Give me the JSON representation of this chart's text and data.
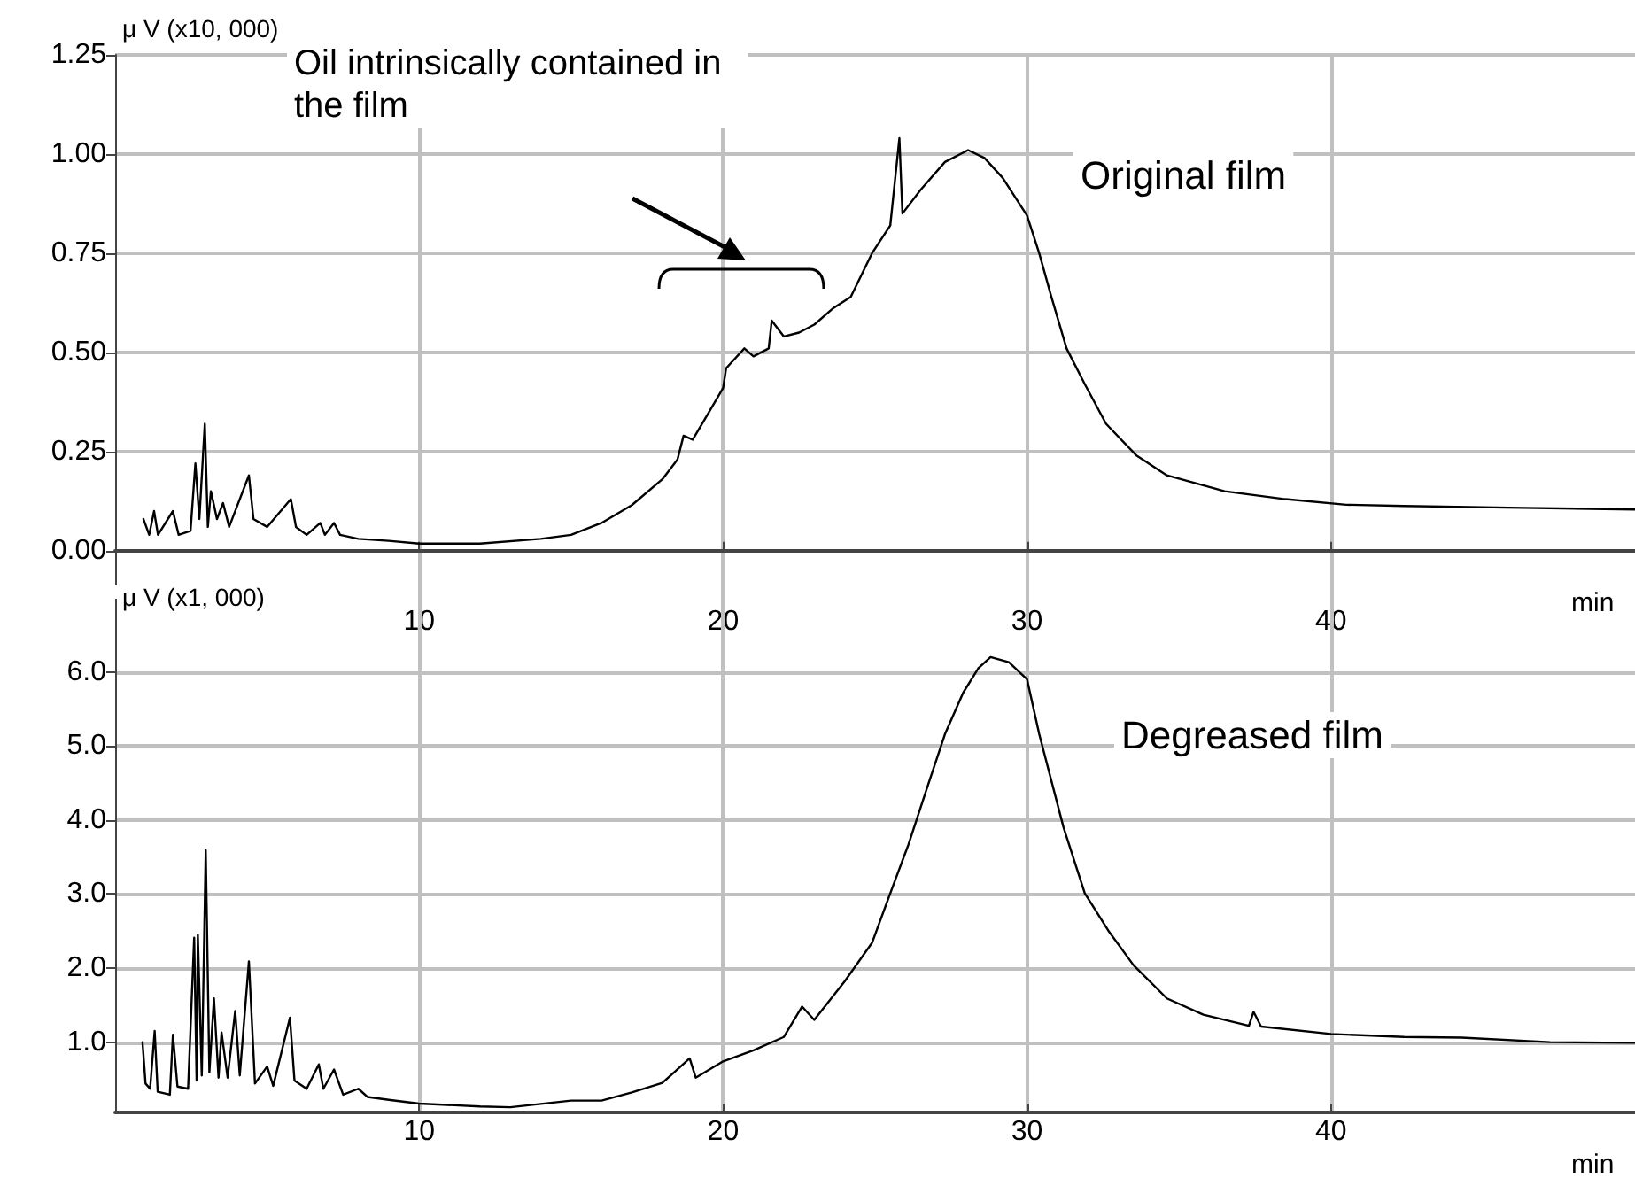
{
  "chart_data": [
    {
      "type": "line",
      "ylabel": "μ V (x10, 000)",
      "xlabel": "min",
      "xlim": [
        0,
        50
      ],
      "xticks": [
        10,
        20,
        30,
        40
      ],
      "ylim": [
        -0.13,
        1.25
      ],
      "yticks": [
        {
          "value": 0,
          "label": "0.00"
        },
        {
          "value": 0.25,
          "label": "0.25"
        },
        {
          "value": 0.5,
          "label": "0.50"
        },
        {
          "value": 0.75,
          "label": "0.75"
        },
        {
          "value": 1,
          "label": "1.00"
        },
        {
          "value": 1.25,
          "label": "1.25"
        }
      ],
      "grid": true,
      "marker": "none",
      "annotations": [
        "Oil intrinsically contained in the film"
      ],
      "x": [
        0.93,
        1.12,
        1.28,
        1.41,
        1.9,
        2.09,
        2.48,
        2.64,
        2.77,
        2.95,
        3.05,
        3.15,
        3.35,
        3.55,
        3.75,
        4.4,
        4.55,
        5.0,
        5.78,
        5.95,
        6.3,
        6.75,
        6.9,
        7.2,
        7.4,
        8,
        9,
        10,
        12,
        14,
        15,
        16,
        17,
        18,
        18.5,
        18.7,
        19,
        19.5,
        20,
        20.1,
        20.7,
        21,
        21.5,
        21.6,
        22,
        22.5,
        23,
        23.6,
        24.2,
        24.9,
        25.5,
        25.8,
        25.9,
        26.5,
        27.3,
        28.06,
        28.6,
        29.2,
        30.0,
        30.4,
        30.8,
        31.3,
        31.9,
        32.6,
        33.6,
        34.6,
        36.5,
        38.5,
        40.5,
        42.4,
        46.3,
        50
      ],
      "series": [
        {
          "name": "Original film",
          "color": "#000000",
          "values": [
            0.08,
            0.04,
            0.1,
            0.04,
            0.1,
            0.04,
            0.05,
            0.22,
            0.08,
            0.32,
            0.06,
            0.15,
            0.08,
            0.12,
            0.06,
            0.19,
            0.08,
            0.06,
            0.13,
            0.06,
            0.04,
            0.07,
            0.04,
            0.07,
            0.04,
            0.03,
            0.025,
            0.018,
            0.018,
            0.03,
            0.04,
            0.07,
            0.115,
            0.18,
            0.23,
            0.29,
            0.28,
            0.345,
            0.41,
            0.46,
            0.51,
            0.49,
            0.51,
            0.58,
            0.54,
            0.55,
            0.57,
            0.61,
            0.64,
            0.75,
            0.82,
            1.04,
            0.85,
            0.91,
            0.98,
            1.01,
            0.99,
            0.94,
            0.845,
            0.75,
            0.64,
            0.51,
            0.42,
            0.32,
            0.24,
            0.19,
            0.15,
            0.13,
            0.116,
            0.113,
            0.108,
            0.104
          ]
        }
      ]
    },
    {
      "type": "line",
      "ylabel": "μ V (x1, 000)",
      "xlabel": "min",
      "xlim": [
        0,
        50
      ],
      "xticks": [
        10,
        20,
        30,
        40
      ],
      "ylim": [
        0.05,
        6.94
      ],
      "yticks": [
        {
          "value": 1,
          "label": "1.0"
        },
        {
          "value": 2,
          "label": "2.0"
        },
        {
          "value": 3,
          "label": "3.0"
        },
        {
          "value": 4,
          "label": "4.0"
        },
        {
          "value": 5,
          "label": "5.0"
        },
        {
          "value": 6,
          "label": "6.0"
        }
      ],
      "grid": true,
      "marker": "none",
      "x": [
        0.9,
        1.0,
        1.15,
        1.3,
        1.4,
        1.8,
        1.9,
        2.05,
        2.4,
        2.6,
        2.68,
        2.72,
        2.85,
        2.98,
        3.1,
        3.25,
        3.4,
        3.5,
        3.7,
        3.95,
        4.1,
        4.4,
        4.6,
        5.0,
        5.2,
        5.75,
        5.9,
        6.3,
        6.7,
        6.85,
        7.2,
        7.5,
        8.0,
        8.3,
        9,
        10,
        12,
        13,
        15,
        16,
        17,
        18,
        18.9,
        19.1,
        20,
        21,
        22,
        22.6,
        23.0,
        24.0,
        24.9,
        25.5,
        26.1,
        26.7,
        27.3,
        27.9,
        28.4,
        28.8,
        29.4,
        30.0,
        30.4,
        31.2,
        31.9,
        32.7,
        33.5,
        34.6,
        35.8,
        37.3,
        37.45,
        37.7,
        40.0,
        42.4,
        44.3,
        47.2,
        50
      ],
      "series": [
        {
          "name": "Degreased film",
          "color": "#000000",
          "values": [
            1.0,
            0.44,
            0.37,
            1.15,
            0.33,
            0.29,
            1.1,
            0.4,
            0.37,
            2.41,
            0.48,
            2.45,
            0.55,
            3.59,
            0.59,
            1.59,
            0.52,
            1.13,
            0.52,
            1.42,
            0.55,
            2.09,
            0.44,
            0.67,
            0.41,
            1.33,
            0.48,
            0.37,
            0.7,
            0.37,
            0.63,
            0.29,
            0.37,
            0.26,
            0.22,
            0.17,
            0.13,
            0.12,
            0.21,
            0.21,
            0.32,
            0.45,
            0.78,
            0.52,
            0.74,
            0.89,
            1.07,
            1.48,
            1.3,
            1.82,
            2.34,
            3.01,
            3.67,
            4.42,
            5.16,
            5.72,
            6.05,
            6.2,
            6.13,
            5.9,
            5.16,
            3.9,
            3.01,
            2.49,
            2.04,
            1.59,
            1.37,
            1.22,
            1.41,
            1.21,
            1.11,
            1.07,
            1.06,
            1.0,
            0.99
          ]
        }
      ]
    }
  ]
}
